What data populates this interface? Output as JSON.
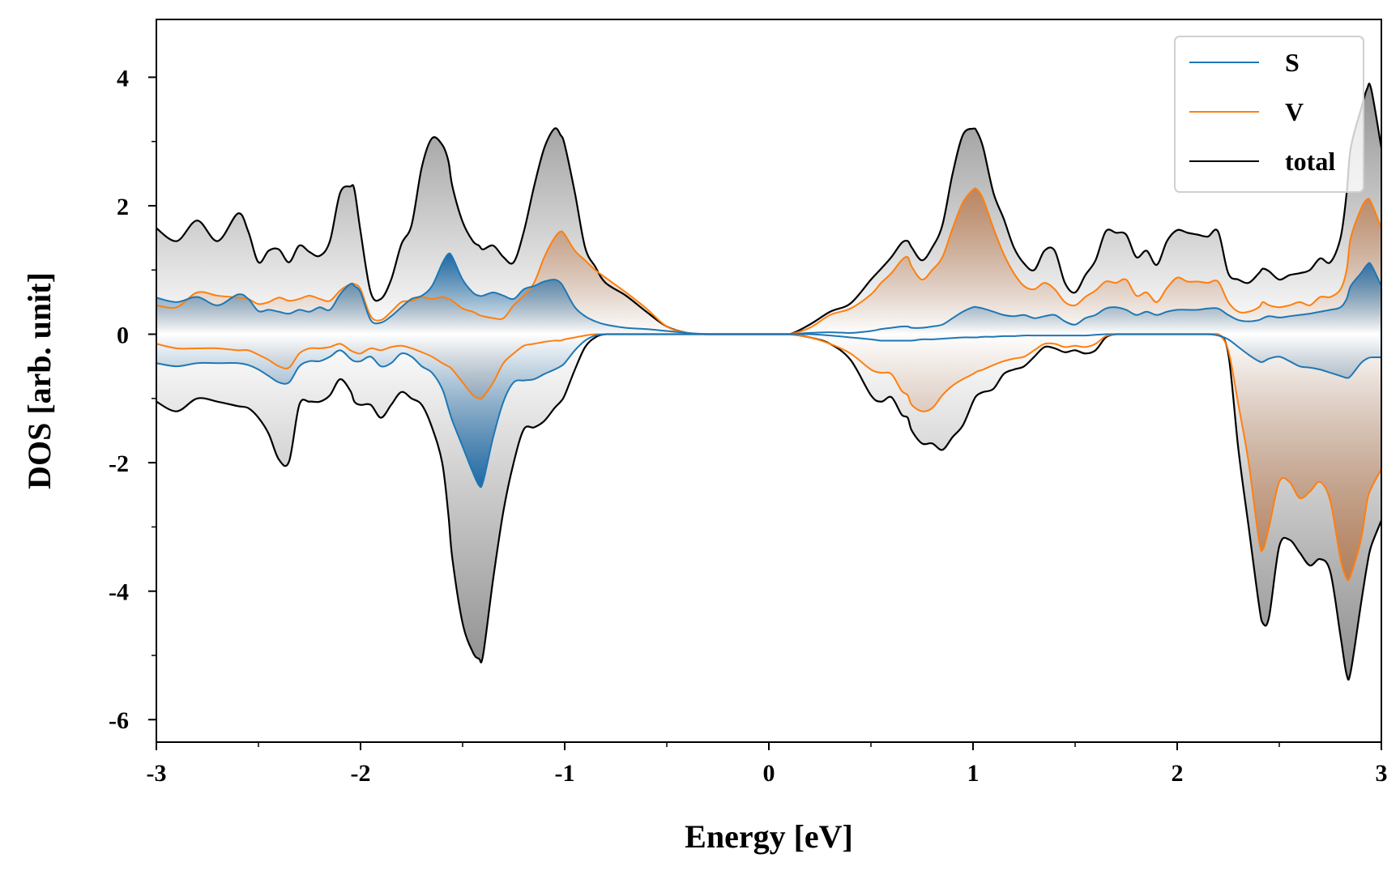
{
  "chart_data": {
    "type": "line",
    "title": "",
    "xlabel": "Energy [eV]",
    "ylabel": "DOS [arb. unit]",
    "xlim": [
      -3,
      3
    ],
    "ylim": [
      -6.35,
      4.9
    ],
    "xticks": [
      -3,
      -2,
      -1,
      0,
      1,
      2,
      3
    ],
    "xtick_labels": [
      "-3",
      "-2",
      "-1",
      "0",
      "1",
      "2",
      "3"
    ],
    "yticks": [
      -6,
      -4,
      -2,
      0,
      2,
      4
    ],
    "ytick_labels": [
      "-6",
      "-4",
      "-2",
      "0",
      "2",
      "4"
    ],
    "grid": false,
    "legend": {
      "position": "top-right",
      "entries": [
        "S",
        "V",
        "total"
      ]
    },
    "x": [
      -3.0,
      -2.9,
      -2.8,
      -2.7,
      -2.6,
      -2.55,
      -2.5,
      -2.45,
      -2.4,
      -2.35,
      -2.3,
      -2.25,
      -2.2,
      -2.15,
      -2.1,
      -2.05,
      -2.03,
      -2.0,
      -1.95,
      -1.9,
      -1.85,
      -1.8,
      -1.75,
      -1.7,
      -1.65,
      -1.6,
      -1.57,
      -1.55,
      -1.5,
      -1.45,
      -1.42,
      -1.4,
      -1.35,
      -1.3,
      -1.25,
      -1.2,
      -1.15,
      -1.1,
      -1.05,
      -1.02,
      -1.0,
      -0.95,
      -0.9,
      -0.85,
      -0.8,
      -0.7,
      -0.6,
      -0.5,
      -0.4,
      -0.3,
      -0.2,
      -0.1,
      0.0,
      0.1,
      0.2,
      0.3,
      0.4,
      0.5,
      0.55,
      0.6,
      0.65,
      0.68,
      0.7,
      0.75,
      0.8,
      0.85,
      0.9,
      0.95,
      1.0,
      1.02,
      1.05,
      1.1,
      1.15,
      1.2,
      1.25,
      1.3,
      1.35,
      1.4,
      1.45,
      1.5,
      1.55,
      1.6,
      1.65,
      1.7,
      1.75,
      1.8,
      1.85,
      1.9,
      1.95,
      2.0,
      2.05,
      2.1,
      2.15,
      2.2,
      2.25,
      2.3,
      2.35,
      2.4,
      2.42,
      2.45,
      2.5,
      2.55,
      2.6,
      2.65,
      2.7,
      2.75,
      2.8,
      2.83,
      2.85,
      2.9,
      2.93,
      2.95,
      3.0
    ],
    "series": [
      {
        "name": "total",
        "color": "#000000",
        "values": [
          1.65,
          1.45,
          1.77,
          1.45,
          1.88,
          1.6,
          1.12,
          1.3,
          1.32,
          1.12,
          1.38,
          1.28,
          1.22,
          1.45,
          2.2,
          2.3,
          2.25,
          1.6,
          0.65,
          0.55,
          0.85,
          1.4,
          1.7,
          2.6,
          3.05,
          2.95,
          2.7,
          2.3,
          1.75,
          1.45,
          1.38,
          1.32,
          1.38,
          1.2,
          1.12,
          1.6,
          2.3,
          2.9,
          3.2,
          3.1,
          2.95,
          2.2,
          1.35,
          1.05,
          0.8,
          0.6,
          0.35,
          0.12,
          0.02,
          0.0,
          0.0,
          0.0,
          0.0,
          0.0,
          0.15,
          0.35,
          0.48,
          0.85,
          1.02,
          1.2,
          1.42,
          1.45,
          1.35,
          1.15,
          1.35,
          1.7,
          2.5,
          3.1,
          3.2,
          3.15,
          2.9,
          2.2,
          1.8,
          1.35,
          1.1,
          1.0,
          1.3,
          1.3,
          0.8,
          0.65,
          0.92,
          1.15,
          1.6,
          1.58,
          1.55,
          1.2,
          1.3,
          1.08,
          1.45,
          1.62,
          1.58,
          1.55,
          1.52,
          1.6,
          0.95,
          0.85,
          0.8,
          0.95,
          1.02,
          0.98,
          0.85,
          0.92,
          0.95,
          1.0,
          1.18,
          1.12,
          1.5,
          2.2,
          2.9,
          3.5,
          3.82,
          3.82,
          2.9
        ]
      },
      {
        "name": "V",
        "color": "#ff7f0e",
        "values": [
          0.45,
          0.42,
          0.65,
          0.6,
          0.57,
          0.55,
          0.47,
          0.5,
          0.57,
          0.52,
          0.55,
          0.6,
          0.55,
          0.52,
          0.68,
          0.78,
          0.78,
          0.7,
          0.28,
          0.22,
          0.35,
          0.5,
          0.52,
          0.58,
          0.55,
          0.58,
          0.55,
          0.52,
          0.4,
          0.35,
          0.3,
          0.28,
          0.25,
          0.25,
          0.45,
          0.6,
          0.8,
          1.2,
          1.5,
          1.6,
          1.55,
          1.3,
          1.15,
          1.0,
          0.88,
          0.65,
          0.4,
          0.12,
          0.02,
          0.0,
          0.0,
          0.0,
          0.0,
          0.0,
          0.1,
          0.3,
          0.4,
          0.62,
          0.8,
          0.95,
          1.15,
          1.2,
          1.05,
          0.85,
          1.0,
          1.2,
          1.65,
          2.05,
          2.25,
          2.25,
          2.1,
          1.65,
          1.25,
          0.95,
          0.75,
          0.7,
          0.8,
          0.7,
          0.5,
          0.45,
          0.58,
          0.68,
          0.82,
          0.8,
          0.85,
          0.6,
          0.65,
          0.5,
          0.72,
          0.88,
          0.82,
          0.82,
          0.8,
          0.82,
          0.5,
          0.35,
          0.35,
          0.42,
          0.5,
          0.45,
          0.42,
          0.45,
          0.5,
          0.45,
          0.58,
          0.58,
          0.7,
          1.0,
          1.5,
          1.95,
          2.1,
          2.05,
          1.65
        ]
      },
      {
        "name": "S",
        "color": "#1f77b4",
        "values": [
          0.57,
          0.5,
          0.58,
          0.45,
          0.62,
          0.55,
          0.36,
          0.38,
          0.35,
          0.32,
          0.38,
          0.35,
          0.42,
          0.38,
          0.62,
          0.78,
          0.75,
          0.65,
          0.22,
          0.18,
          0.28,
          0.42,
          0.55,
          0.6,
          0.75,
          1.1,
          1.25,
          1.2,
          0.85,
          0.65,
          0.6,
          0.6,
          0.65,
          0.6,
          0.55,
          0.7,
          0.75,
          0.82,
          0.85,
          0.8,
          0.7,
          0.42,
          0.28,
          0.2,
          0.15,
          0.1,
          0.08,
          0.05,
          0.02,
          0.0,
          0.0,
          0.0,
          0.0,
          0.0,
          0.02,
          0.03,
          0.02,
          0.05,
          0.08,
          0.1,
          0.12,
          0.12,
          0.1,
          0.1,
          0.12,
          0.15,
          0.25,
          0.35,
          0.42,
          0.42,
          0.4,
          0.35,
          0.3,
          0.28,
          0.3,
          0.25,
          0.28,
          0.3,
          0.2,
          0.15,
          0.25,
          0.3,
          0.4,
          0.42,
          0.38,
          0.3,
          0.35,
          0.3,
          0.35,
          0.38,
          0.38,
          0.38,
          0.4,
          0.4,
          0.3,
          0.22,
          0.2,
          0.22,
          0.25,
          0.28,
          0.26,
          0.28,
          0.3,
          0.32,
          0.35,
          0.38,
          0.42,
          0.55,
          0.75,
          0.95,
          1.08,
          1.08,
          0.75
        ]
      },
      {
        "name": "total",
        "color": "#000000",
        "spin": "down",
        "legend": false,
        "values": [
          -1.05,
          -1.2,
          -1.0,
          -1.05,
          -1.12,
          -1.15,
          -1.3,
          -1.55,
          -1.95,
          -1.98,
          -1.1,
          -1.05,
          -1.05,
          -0.95,
          -0.7,
          -0.88,
          -1.05,
          -1.1,
          -1.1,
          -1.3,
          -1.1,
          -0.9,
          -1.0,
          -1.1,
          -1.45,
          -2.0,
          -2.8,
          -3.5,
          -4.5,
          -4.95,
          -5.05,
          -5.0,
          -3.8,
          -2.75,
          -2.0,
          -1.48,
          -1.45,
          -1.35,
          -1.15,
          -1.05,
          -0.95,
          -0.55,
          -0.2,
          -0.05,
          0.0,
          0.0,
          0.0,
          0.0,
          0.0,
          0.0,
          0.0,
          0.0,
          0.0,
          0.0,
          -0.05,
          -0.15,
          -0.4,
          -0.95,
          -1.05,
          -0.98,
          -1.25,
          -1.3,
          -1.5,
          -1.7,
          -1.7,
          -1.8,
          -1.6,
          -1.42,
          -1.05,
          -0.95,
          -0.9,
          -0.85,
          -0.62,
          -0.55,
          -0.5,
          -0.35,
          -0.2,
          -0.22,
          -0.28,
          -0.25,
          -0.3,
          -0.25,
          -0.05,
          0.0,
          0.0,
          0.0,
          0.0,
          0.0,
          0.0,
          0.0,
          0.0,
          0.0,
          0.0,
          0.0,
          -0.3,
          -1.8,
          -3.0,
          -4.2,
          -4.5,
          -4.4,
          -3.3,
          -3.2,
          -3.4,
          -3.6,
          -3.5,
          -3.7,
          -4.7,
          -5.3,
          -5.25,
          -4.2,
          -3.6,
          -3.3,
          -2.9
        ]
      },
      {
        "name": "V",
        "color": "#ff7f0e",
        "spin": "down",
        "legend": false,
        "values": [
          -0.15,
          -0.22,
          -0.22,
          -0.22,
          -0.25,
          -0.25,
          -0.32,
          -0.4,
          -0.5,
          -0.52,
          -0.3,
          -0.22,
          -0.22,
          -0.2,
          -0.15,
          -0.25,
          -0.28,
          -0.3,
          -0.22,
          -0.25,
          -0.2,
          -0.18,
          -0.22,
          -0.28,
          -0.35,
          -0.45,
          -0.5,
          -0.55,
          -0.75,
          -0.95,
          -1.0,
          -0.98,
          -0.75,
          -0.45,
          -0.3,
          -0.18,
          -0.15,
          -0.12,
          -0.1,
          -0.1,
          -0.08,
          -0.05,
          -0.02,
          0.0,
          0.0,
          0.0,
          0.0,
          0.0,
          0.0,
          0.0,
          0.0,
          0.0,
          0.0,
          0.0,
          -0.05,
          -0.15,
          -0.3,
          -0.55,
          -0.6,
          -0.62,
          -0.88,
          -0.95,
          -1.1,
          -1.2,
          -1.15,
          -0.95,
          -0.8,
          -0.7,
          -0.62,
          -0.58,
          -0.55,
          -0.48,
          -0.42,
          -0.38,
          -0.35,
          -0.25,
          -0.15,
          -0.15,
          -0.2,
          -0.18,
          -0.2,
          -0.15,
          -0.03,
          0.0,
          0.0,
          0.0,
          0.0,
          0.0,
          0.0,
          0.0,
          0.0,
          0.0,
          0.0,
          0.0,
          -0.25,
          -1.1,
          -2.0,
          -3.2,
          -3.35,
          -3.0,
          -2.3,
          -2.3,
          -2.55,
          -2.45,
          -2.3,
          -2.6,
          -3.5,
          -3.8,
          -3.75,
          -3.2,
          -2.6,
          -2.4,
          -2.1
        ]
      },
      {
        "name": "S",
        "color": "#1f77b4",
        "spin": "down",
        "legend": false,
        "values": [
          -0.45,
          -0.5,
          -0.45,
          -0.45,
          -0.45,
          -0.48,
          -0.55,
          -0.65,
          -0.75,
          -0.75,
          -0.5,
          -0.42,
          -0.42,
          -0.35,
          -0.25,
          -0.38,
          -0.42,
          -0.42,
          -0.35,
          -0.5,
          -0.45,
          -0.3,
          -0.35,
          -0.5,
          -0.6,
          -0.85,
          -1.15,
          -1.35,
          -1.75,
          -2.15,
          -2.35,
          -2.3,
          -1.6,
          -1.05,
          -0.75,
          -0.72,
          -0.7,
          -0.62,
          -0.55,
          -0.5,
          -0.45,
          -0.25,
          -0.1,
          -0.02,
          0.0,
          0.0,
          0.0,
          0.0,
          0.0,
          0.0,
          0.0,
          0.0,
          0.0,
          0.0,
          0.0,
          -0.02,
          -0.05,
          -0.08,
          -0.1,
          -0.1,
          -0.1,
          -0.1,
          -0.1,
          -0.08,
          -0.08,
          -0.07,
          -0.06,
          -0.05,
          -0.05,
          -0.05,
          -0.04,
          -0.04,
          -0.03,
          -0.03,
          -0.02,
          -0.02,
          -0.02,
          -0.02,
          -0.02,
          -0.02,
          -0.02,
          -0.01,
          0.0,
          0.0,
          0.0,
          0.0,
          0.0,
          0.0,
          0.0,
          0.0,
          0.0,
          0.0,
          0.0,
          -0.02,
          -0.08,
          -0.2,
          -0.32,
          -0.42,
          -0.43,
          -0.38,
          -0.35,
          -0.42,
          -0.5,
          -0.52,
          -0.55,
          -0.6,
          -0.65,
          -0.68,
          -0.65,
          -0.45,
          -0.38,
          -0.36,
          -0.36
        ]
      }
    ]
  }
}
